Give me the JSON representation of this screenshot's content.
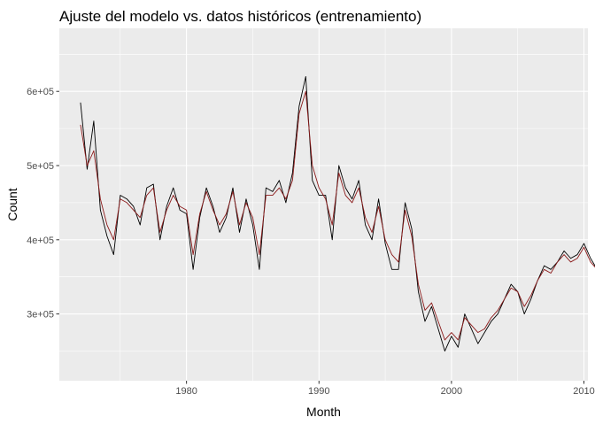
{
  "chart_data": {
    "type": "line",
    "title": "Ajuste del modelo vs. datos históricos (entrenamiento)",
    "xlabel": "Month",
    "ylabel": "Count",
    "xlim": [
      1970.4,
      2010.3
    ],
    "ylim": [
      210000,
      685000
    ],
    "x_ticks": [
      1980,
      1990,
      2000,
      2010
    ],
    "x_tick_labels": [
      "1980",
      "1990",
      "2000",
      "2010"
    ],
    "y_ticks": [
      300000,
      400000,
      500000,
      600000
    ],
    "y_tick_labels": [
      "3e+05",
      "4e+05",
      "5e+05",
      "6e+05"
    ],
    "grid": true,
    "legend": "none",
    "x_start": 1972.0,
    "x_step": 0.5,
    "series": [
      {
        "color": "#000000",
        "values": [
          585000,
          495000,
          560000,
          440000,
          405000,
          380000,
          460000,
          455000,
          445000,
          420000,
          470000,
          475000,
          400000,
          445000,
          470000,
          440000,
          435000,
          360000,
          430000,
          470000,
          445000,
          410000,
          430000,
          470000,
          410000,
          455000,
          420000,
          360000,
          470000,
          465000,
          480000,
          450000,
          490000,
          580000,
          620000,
          480000,
          460000,
          460000,
          400000,
          500000,
          470000,
          455000,
          480000,
          420000,
          400000,
          455000,
          395000,
          360000,
          360000,
          450000,
          415000,
          330000,
          290000,
          310000,
          280000,
          250000,
          270000,
          255000,
          300000,
          280000,
          260000,
          275000,
          290000,
          300000,
          320000,
          340000,
          330000,
          300000,
          320000,
          345000,
          365000,
          360000,
          370000,
          385000,
          375000,
          380000,
          395000,
          375000,
          360000,
          395000,
          365000,
          380000,
          380000,
          410000,
          375000,
          430000,
          395000,
          375000,
          380000,
          360000,
          450000,
          395000,
          350000,
          380000,
          350000,
          385000,
          370000,
          390000,
          350000,
          360000,
          400000,
          450000,
          450000
        ]
      },
      {
        "color": "#8b1a1a",
        "values": [
          555000,
          500000,
          520000,
          455000,
          420000,
          400000,
          455000,
          450000,
          440000,
          430000,
          460000,
          470000,
          410000,
          440000,
          460000,
          445000,
          440000,
          380000,
          435000,
          465000,
          440000,
          420000,
          435000,
          465000,
          420000,
          450000,
          430000,
          380000,
          460000,
          460000,
          470000,
          455000,
          480000,
          570000,
          600000,
          500000,
          470000,
          455000,
          420000,
          490000,
          460000,
          450000,
          470000,
          430000,
          410000,
          445000,
          400000,
          380000,
          370000,
          440000,
          405000,
          340000,
          305000,
          315000,
          290000,
          265000,
          275000,
          265000,
          295000,
          285000,
          275000,
          280000,
          295000,
          305000,
          320000,
          335000,
          330000,
          310000,
          325000,
          345000,
          360000,
          355000,
          370000,
          380000,
          370000,
          375000,
          390000,
          370000,
          360000,
          385000,
          365000,
          375000,
          380000,
          400000,
          380000,
          420000,
          395000,
          380000,
          380000,
          365000,
          430000,
          400000,
          360000,
          380000,
          355000,
          380000,
          375000,
          385000,
          360000,
          365000,
          390000,
          430000,
          420000
        ]
      }
    ]
  }
}
